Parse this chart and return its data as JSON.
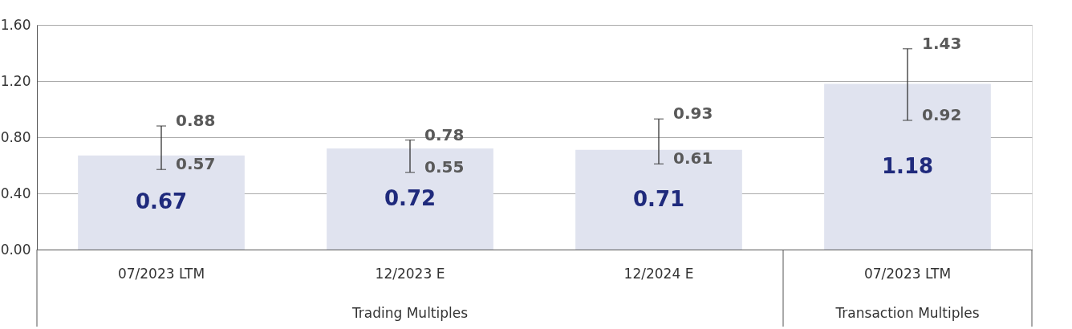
{
  "chart_data": {
    "type": "bar",
    "categories": [
      "07/2023 LTM",
      "12/2023 E",
      "12/2024 E",
      "07/2023 LTM"
    ],
    "values": [
      0.67,
      0.72,
      0.71,
      1.18
    ],
    "errors": [
      [
        0.57,
        0.88
      ],
      [
        0.55,
        0.78
      ],
      [
        0.61,
        0.93
      ],
      [
        0.92,
        1.43
      ]
    ],
    "color": "#e0e3ef",
    "data_labels": true,
    "ylim": [
      0,
      1.6
    ],
    "yticks": [
      {
        "value": 0,
        "label": "0.00"
      },
      {
        "value": 0.4,
        "label": "0.40"
      },
      {
        "value": 0.8,
        "label": "0.80"
      },
      {
        "value": 1.2,
        "label": "1.20"
      },
      {
        "value": 1.6,
        "label": "1.60"
      }
    ],
    "grid": "y",
    "annotations": [
      "0.57",
      "0.88",
      "0.55",
      "0.78",
      "0.61",
      "0.93",
      "0.92",
      "1.43",
      "Trading Multiples",
      "Transaction Multiples"
    ]
  }
}
